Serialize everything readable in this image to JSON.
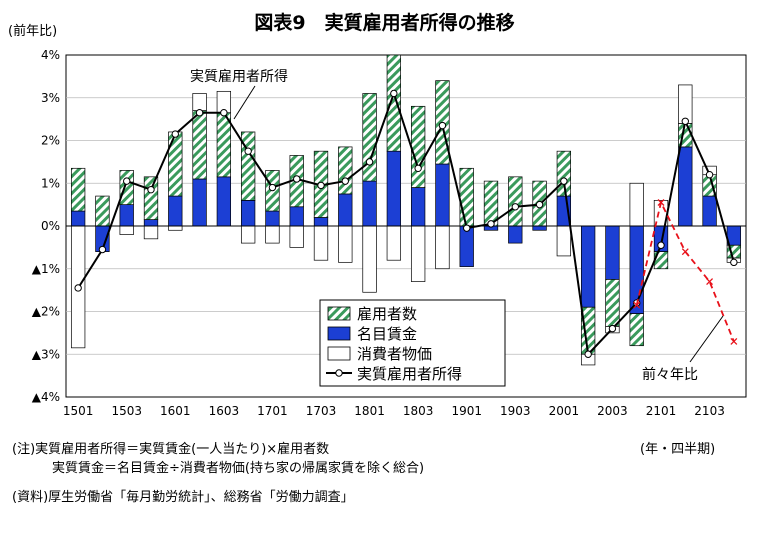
{
  "title": "図表9　実質雇用者所得の推移",
  "y_unit_label": "(前年比)",
  "x_unit_label": "(年・四半期)",
  "notes": [
    "(注)実質雇用者所得＝実質賃金(一人当たり)×雇用者数",
    "実質賃金＝名目賃金÷消費者物価(持ち家の帰属家賃を除く総合)",
    "(資料)厚生労働省「毎月勤労統計」、総務省「労働力調査」"
  ],
  "annotations": {
    "real_income": "実質雇用者所得",
    "two_year": "前々年比"
  },
  "chart_data": {
    "type": "bar",
    "stacked": true,
    "x_categories": [
      "1501",
      "1502",
      "1503",
      "1504",
      "1601",
      "1602",
      "1603",
      "1604",
      "1701",
      "1702",
      "1703",
      "1704",
      "1801",
      "1802",
      "1803",
      "1804",
      "1901",
      "1902",
      "1903",
      "1904",
      "2001",
      "2002",
      "2003",
      "2004",
      "2101",
      "2102",
      "2103",
      "2104"
    ],
    "x_tick_labels": [
      "1501",
      "1503",
      "1601",
      "1603",
      "1701",
      "1703",
      "1801",
      "1803",
      "1901",
      "1903",
      "2001",
      "2003",
      "2101",
      "2103"
    ],
    "y_tick_labels": [
      "4%",
      "3%",
      "2%",
      "1%",
      "0%",
      "▲1%",
      "▲2%",
      "▲3%",
      "▲4%"
    ],
    "ylim": [
      -4,
      4
    ],
    "grid": true,
    "legend_position": "bottom-left",
    "series": [
      {
        "name": "雇用者数",
        "kind": "bar",
        "color": "#3a9a5c",
        "values": [
          1.0,
          0.7,
          0.8,
          1.0,
          1.5,
          1.6,
          1.5,
          1.6,
          0.95,
          1.2,
          1.55,
          1.1,
          2.05,
          2.25,
          1.9,
          1.95,
          1.35,
          1.05,
          1.15,
          1.05,
          1.05,
          -1.1,
          -1.1,
          -0.75,
          -0.4,
          0.55,
          0.5,
          -0.3
        ]
      },
      {
        "name": "名目賃金",
        "kind": "bar",
        "color": "#1c3fd4",
        "values": [
          0.35,
          -0.6,
          0.5,
          0.15,
          0.7,
          1.1,
          1.15,
          0.6,
          0.35,
          0.45,
          0.2,
          0.75,
          1.05,
          1.75,
          0.9,
          1.45,
          -0.95,
          -0.1,
          -0.4,
          -0.1,
          0.7,
          -1.9,
          -1.25,
          -2.05,
          -0.6,
          1.85,
          0.7,
          -0.45
        ]
      },
      {
        "name": "消費者物価",
        "kind": "bar",
        "color": "#ffffff",
        "values": [
          -2.85,
          0,
          -0.2,
          -0.3,
          -0.1,
          0.4,
          0.5,
          -0.4,
          -0.4,
          -0.5,
          -0.8,
          -0.85,
          -1.55,
          -0.8,
          -1.3,
          -1.0,
          0,
          0,
          0,
          0,
          -0.7,
          -0.25,
          -0.15,
          1.0,
          0.6,
          0.9,
          0.2,
          -0.1
        ]
      },
      {
        "name": "実質雇用者所得",
        "kind": "line",
        "color": "#000000",
        "values": [
          -1.45,
          -0.55,
          1.05,
          0.85,
          2.15,
          2.65,
          2.65,
          1.75,
          0.9,
          1.1,
          0.95,
          1.05,
          1.5,
          3.1,
          1.35,
          2.35,
          -0.05,
          0.05,
          0.45,
          0.5,
          1.05,
          -3.0,
          -2.4,
          -1.8,
          -0.45,
          2.45,
          1.2,
          -0.85
        ]
      },
      {
        "name": "前々年比",
        "kind": "line",
        "color": "#e8111a",
        "dashed": true,
        "values": [
          null,
          null,
          null,
          null,
          null,
          null,
          null,
          null,
          null,
          null,
          null,
          null,
          null,
          null,
          null,
          null,
          null,
          null,
          null,
          null,
          null,
          null,
          null,
          -1.85,
          0.55,
          -0.6,
          -1.3,
          -2.7
        ]
      }
    ]
  }
}
